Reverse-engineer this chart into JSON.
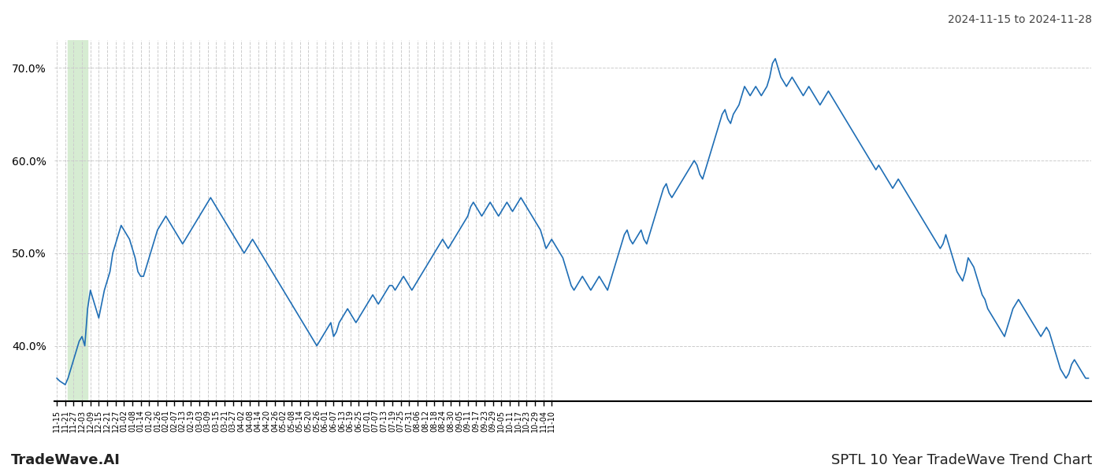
{
  "title_right": "2024-11-15 to 2024-11-28",
  "title_bottom_left": "TradeWave.AI",
  "title_bottom_right": "SPTL 10 Year TradeWave Trend Chart",
  "line_color": "#1f6eb5",
  "line_width": 1.2,
  "highlight_xstart": 4,
  "highlight_xend": 11,
  "highlight_color": "#d6ecd2",
  "ylim": [
    34.0,
    73.0
  ],
  "yticks": [
    40,
    50,
    60,
    70
  ],
  "ytick_labels": [
    "40.0%",
    "50.0%",
    "60.0%",
    "70.0%"
  ],
  "background_color": "#ffffff",
  "grid_color": "#cccccc",
  "xtick_fontsize": 7,
  "ytick_fontsize": 10,
  "y_values": [
    36.5,
    36.2,
    36.0,
    35.8,
    36.5,
    37.5,
    38.5,
    39.5,
    40.5,
    41.0,
    40.0,
    44.0,
    46.0,
    45.0,
    44.0,
    43.0,
    44.5,
    46.0,
    47.0,
    48.0,
    50.0,
    51.0,
    52.0,
    53.0,
    52.5,
    52.0,
    51.5,
    50.5,
    49.5,
    48.0,
    47.5,
    47.5,
    48.5,
    49.5,
    50.5,
    51.5,
    52.5,
    53.0,
    53.5,
    54.0,
    53.5,
    53.0,
    52.5,
    52.0,
    51.5,
    51.0,
    51.5,
    52.0,
    52.5,
    53.0,
    53.5,
    54.0,
    54.5,
    55.0,
    55.5,
    56.0,
    55.5,
    55.0,
    54.5,
    54.0,
    53.5,
    53.0,
    52.5,
    52.0,
    51.5,
    51.0,
    50.5,
    50.0,
    50.5,
    51.0,
    51.5,
    51.0,
    50.5,
    50.0,
    49.5,
    49.0,
    48.5,
    48.0,
    47.5,
    47.0,
    46.5,
    46.0,
    45.5,
    45.0,
    44.5,
    44.0,
    43.5,
    43.0,
    42.5,
    42.0,
    41.5,
    41.0,
    40.5,
    40.0,
    40.5,
    41.0,
    41.5,
    42.0,
    42.5,
    41.0,
    41.5,
    42.5,
    43.0,
    43.5,
    44.0,
    43.5,
    43.0,
    42.5,
    43.0,
    43.5,
    44.0,
    44.5,
    45.0,
    45.5,
    45.0,
    44.5,
    45.0,
    45.5,
    46.0,
    46.5,
    46.5,
    46.0,
    46.5,
    47.0,
    47.5,
    47.0,
    46.5,
    46.0,
    46.5,
    47.0,
    47.5,
    48.0,
    48.5,
    49.0,
    49.5,
    50.0,
    50.5,
    51.0,
    51.5,
    51.0,
    50.5,
    51.0,
    51.5,
    52.0,
    52.5,
    53.0,
    53.5,
    54.0,
    55.0,
    55.5,
    55.0,
    54.5,
    54.0,
    54.5,
    55.0,
    55.5,
    55.0,
    54.5,
    54.0,
    54.5,
    55.0,
    55.5,
    55.0,
    54.5,
    55.0,
    55.5,
    56.0,
    55.5,
    55.0,
    54.5,
    54.0,
    53.5,
    53.0,
    52.5,
    51.5,
    50.5,
    51.0,
    51.5,
    51.0,
    50.5,
    50.0,
    49.5,
    48.5,
    47.5,
    46.5,
    46.0,
    46.5,
    47.0,
    47.5,
    47.0,
    46.5,
    46.0,
    46.5,
    47.0,
    47.5,
    47.0,
    46.5,
    46.0,
    47.0,
    48.0,
    49.0,
    50.0,
    51.0,
    52.0,
    52.5,
    51.5,
    51.0,
    51.5,
    52.0,
    52.5,
    51.5,
    51.0,
    52.0,
    53.0,
    54.0,
    55.0,
    56.0,
    57.0,
    57.5,
    56.5,
    56.0,
    56.5,
    57.0,
    57.5,
    58.0,
    58.5,
    59.0,
    59.5,
    60.0,
    59.5,
    58.5,
    58.0,
    59.0,
    60.0,
    61.0,
    62.0,
    63.0,
    64.0,
    65.0,
    65.5,
    64.5,
    64.0,
    65.0,
    65.5,
    66.0,
    67.0,
    68.0,
    67.5,
    67.0,
    67.5,
    68.0,
    67.5,
    67.0,
    67.5,
    68.0,
    69.0,
    70.5,
    71.0,
    70.0,
    69.0,
    68.5,
    68.0,
    68.5,
    69.0,
    68.5,
    68.0,
    67.5,
    67.0,
    67.5,
    68.0,
    67.5,
    67.0,
    66.5,
    66.0,
    66.5,
    67.0,
    67.5,
    67.0,
    66.5,
    66.0,
    65.5,
    65.0,
    64.5,
    64.0,
    63.5,
    63.0,
    62.5,
    62.0,
    61.5,
    61.0,
    60.5,
    60.0,
    59.5,
    59.0,
    59.5,
    59.0,
    58.5,
    58.0,
    57.5,
    57.0,
    57.5,
    58.0,
    57.5,
    57.0,
    56.5,
    56.0,
    55.5,
    55.0,
    54.5,
    54.0,
    53.5,
    53.0,
    52.5,
    52.0,
    51.5,
    51.0,
    50.5,
    51.0,
    52.0,
    51.0,
    50.0,
    49.0,
    48.0,
    47.5,
    47.0,
    48.0,
    49.5,
    49.0,
    48.5,
    47.5,
    46.5,
    45.5,
    45.0,
    44.0,
    43.5,
    43.0,
    42.5,
    42.0,
    41.5,
    41.0,
    42.0,
    43.0,
    44.0,
    44.5,
    45.0,
    44.5,
    44.0,
    43.5,
    43.0,
    42.5,
    42.0,
    41.5,
    41.0,
    41.5,
    42.0,
    41.5,
    40.5,
    39.5,
    38.5,
    37.5,
    37.0,
    36.5,
    37.0,
    38.0,
    38.5,
    38.0,
    37.5,
    37.0,
    36.5,
    36.5
  ],
  "xtick_positions_labels": [
    [
      0,
      "11-15"
    ],
    [
      3,
      "11-21"
    ],
    [
      6,
      "11-27"
    ],
    [
      9,
      "12-03"
    ],
    [
      12,
      "12-09"
    ],
    [
      15,
      "12-15"
    ],
    [
      18,
      "12-21"
    ],
    [
      21,
      "12-27"
    ],
    [
      24,
      "01-02"
    ],
    [
      27,
      "01-08"
    ],
    [
      30,
      "01-14"
    ],
    [
      33,
      "01-20"
    ],
    [
      36,
      "01-26"
    ],
    [
      39,
      "02-01"
    ],
    [
      42,
      "02-07"
    ],
    [
      45,
      "02-13"
    ],
    [
      48,
      "02-19"
    ],
    [
      51,
      "03-03"
    ],
    [
      54,
      "03-09"
    ],
    [
      57,
      "03-15"
    ],
    [
      60,
      "03-21"
    ],
    [
      63,
      "03-27"
    ],
    [
      66,
      "04-02"
    ],
    [
      69,
      "04-08"
    ],
    [
      72,
      "04-14"
    ],
    [
      75,
      "04-20"
    ],
    [
      78,
      "04-26"
    ],
    [
      81,
      "05-02"
    ],
    [
      84,
      "05-08"
    ],
    [
      87,
      "05-14"
    ],
    [
      90,
      "05-20"
    ],
    [
      93,
      "05-26"
    ],
    [
      96,
      "06-01"
    ],
    [
      99,
      "06-07"
    ],
    [
      102,
      "06-13"
    ],
    [
      105,
      "06-19"
    ],
    [
      108,
      "06-25"
    ],
    [
      111,
      "07-01"
    ],
    [
      114,
      "07-07"
    ],
    [
      117,
      "07-13"
    ],
    [
      120,
      "07-19"
    ],
    [
      123,
      "07-25"
    ],
    [
      126,
      "07-31"
    ],
    [
      129,
      "08-06"
    ],
    [
      132,
      "08-12"
    ],
    [
      135,
      "08-18"
    ],
    [
      138,
      "08-24"
    ],
    [
      141,
      "08-30"
    ],
    [
      144,
      "09-05"
    ],
    [
      147,
      "09-11"
    ],
    [
      150,
      "09-17"
    ],
    [
      153,
      "09-23"
    ],
    [
      156,
      "09-29"
    ],
    [
      159,
      "10-05"
    ],
    [
      162,
      "10-11"
    ],
    [
      165,
      "10-17"
    ],
    [
      168,
      "10-23"
    ],
    [
      171,
      "10-29"
    ],
    [
      174,
      "11-04"
    ],
    [
      177,
      "11-10"
    ]
  ]
}
